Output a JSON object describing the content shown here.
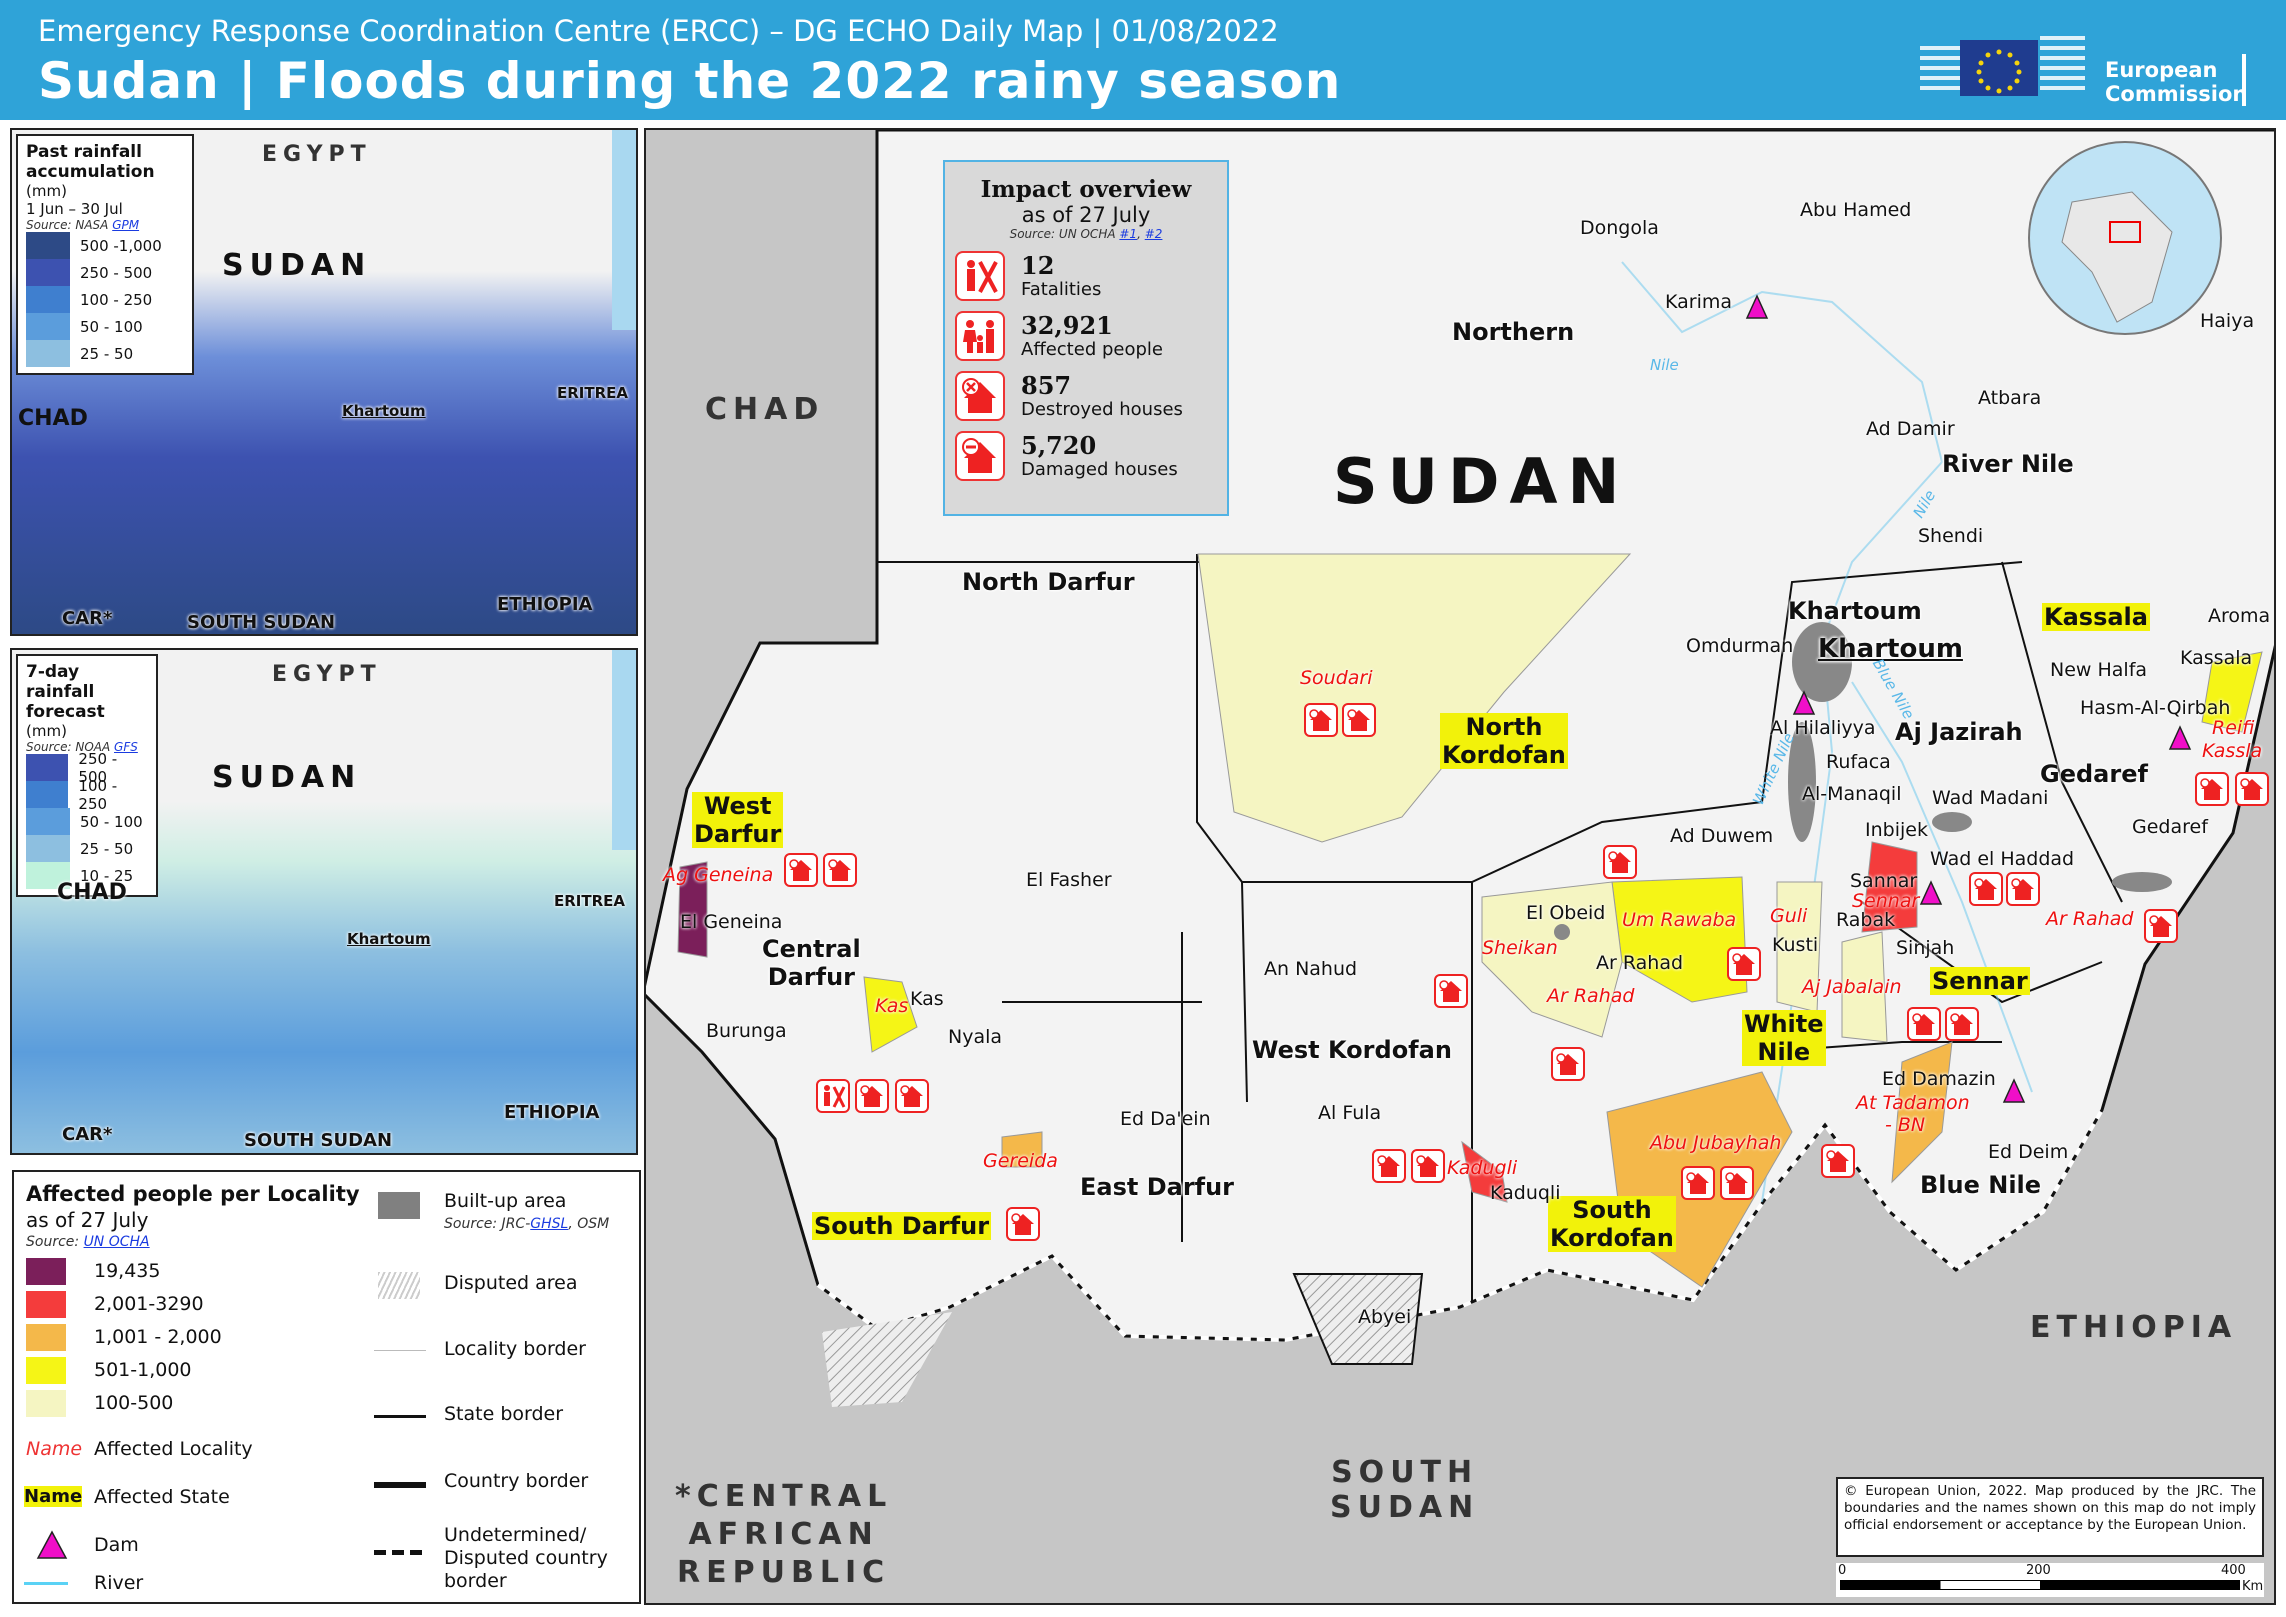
{
  "header": {
    "subtitle": "Emergency Response Coordination Centre (ERCC) – DG ECHO Daily Map | 01/08/2022",
    "title": "Sudan | Floods during the 2022 rainy season",
    "logo_text_1": "European",
    "logo_text_2": "Commission"
  },
  "inset_past": {
    "title_1": "Past rainfall",
    "title_2": "accumulation",
    "unit": "(mm)",
    "period": "1 Jun – 30 Jul",
    "source": "Source: NASA",
    "source_link": "GPM",
    "classes": [
      {
        "label": "500 -1,000",
        "color": "#2d4a86"
      },
      {
        "label": "250 - 500",
        "color": "#3d52b0"
      },
      {
        "label": "100 - 250",
        "color": "#3f7fcf"
      },
      {
        "label": "50 - 100",
        "color": "#5b9ddc"
      },
      {
        "label": "25 - 50",
        "color": "#8dbfe0"
      }
    ],
    "labels": {
      "egypt": "EGYPT",
      "sudan": "SUDAN",
      "chad": "CHAD",
      "eritrea": "ERITREA",
      "khartoum": "Khartoum",
      "car": "CAR*",
      "south_sudan": "SOUTH SUDAN",
      "ethiopia": "ETHIOPIA"
    }
  },
  "inset_forecast": {
    "title_1": "7-day rainfall",
    "title_2": "forecast",
    "unit": "(mm)",
    "source": "Source: NOAA",
    "source_link": "GFS",
    "classes": [
      {
        "label": "250 - 500",
        "color": "#3d52b0"
      },
      {
        "label": "100 - 250",
        "color": "#3f7fcf"
      },
      {
        "label": "50 - 100",
        "color": "#5b9ddc"
      },
      {
        "label": "25 - 50",
        "color": "#8dbfe0"
      },
      {
        "label": "10 - 25",
        "color": "#bff2dc"
      }
    ],
    "labels": {
      "egypt": "EGYPT",
      "sudan": "SUDAN",
      "chad": "CHAD",
      "eritrea": "ERITREA",
      "khartoum": "Khartoum",
      "car": "CAR*",
      "south_sudan": "SOUTH SUDAN",
      "ethiopia": "ETHIOPIA"
    }
  },
  "impact": {
    "title": "Impact overview",
    "date": "as of 27 July",
    "source": "Source: UN OCHA",
    "link1": "#1",
    "link2": "#2",
    "items": [
      {
        "value": "12",
        "label": "Fatalities",
        "icon": "fatalities-icon"
      },
      {
        "value": "32,921",
        "label": "Affected people",
        "icon": "affected-people-icon"
      },
      {
        "value": "857",
        "label": "Destroyed houses",
        "icon": "destroyed-house-icon"
      },
      {
        "value": "5,720",
        "label": "Damaged  houses",
        "icon": "damaged-house-icon"
      }
    ]
  },
  "legend": {
    "title": "Affected people per Locality",
    "date": "as of 27 July",
    "source": "Source:",
    "source_link": "UN OCHA",
    "classes": [
      {
        "label": "19,435",
        "color": "#7b1f5a"
      },
      {
        "label": "2,001-3290",
        "color": "#f43c3c"
      },
      {
        "label": "1,001  -  2,000",
        "color": "#f4b84a"
      },
      {
        "label": "501-1,000",
        "color": "#f5f516"
      },
      {
        "label": "100-500",
        "color": "#f5f5c2"
      }
    ],
    "name_sample": "Name",
    "affected_locality": "Affected Locality",
    "affected_state": "Affected State",
    "dam": "Dam",
    "river": "River",
    "builtup": "Built-up  area",
    "builtup_source": "Source: JRC-",
    "builtup_link": "GHSL",
    "builtup_source2": ", OSM",
    "disputed": "Disputed  area",
    "locality_border": "Locality border",
    "state_border": "State border",
    "country_border": "Country  border",
    "undetermined_1": "Undetermined/",
    "undetermined_2": "Disputed  country",
    "undetermined_3": "border",
    "colors": {
      "dam": "#f00fc8",
      "river": "#5ad2f5"
    }
  },
  "map": {
    "countries": {
      "chad": "CHAD",
      "sudan": "SUDAN",
      "ethiopia": "ETHIOPIA",
      "south_sudan_1": "SOUTH",
      "south_sudan_2": "SUDAN",
      "car_1": "*CENTRAL",
      "car_2": "AFRICAN",
      "car_3": "REPUBLIC"
    },
    "affected_states": [
      "West",
      "Darfur",
      "Central",
      "Darfur",
      "North",
      "Kordofan",
      "South Darfur",
      "South",
      "Kordofan",
      "White",
      "Nile",
      "Sennar",
      "Kassala",
      "Khartoum"
    ],
    "states": [
      "Northern",
      "River Nile",
      "North Darfur",
      "West Kordofan",
      "East Darfur",
      "Blue Nile",
      "Gedaref",
      "Aj Jazirah",
      "Khartoum"
    ],
    "localities": [
      "Soudari",
      "Ag Geneina",
      "Kas",
      "Gereida",
      "Kadugli",
      "Abu Jubayhah",
      "Um Rawaba",
      "Sheikan",
      "Ar Rahad",
      "Guli",
      "Aj Jabalain",
      "At Tadamon",
      "- BN",
      "Sennar",
      "Ar Rahad",
      "Reifi",
      "Kassla"
    ],
    "towns": [
      "Dongola",
      "Abu Hamed",
      "Karima",
      "Atbara",
      "Ad Damir",
      "Shendi",
      "Haiya",
      "Aroma",
      "Kassala",
      "New Halfa",
      "Hasm-Al-Qirbah",
      "Omdurman",
      "Al Hilaliyya",
      "Rufaca",
      "Al-Manaqil",
      "Wad Madani",
      "Gedaref",
      "Inbijek",
      "Ad Duwem",
      "Wad el Haddad",
      "Rabak",
      "Kusti",
      "Sinjah",
      "El Obeid",
      "Ar Rahad",
      "An Nahud",
      "El Fasher",
      "El Geneina",
      "Kas",
      "Nyala",
      "Burunga",
      "Ed Da'ein",
      "Al Fula",
      "Kaduqli",
      "Ed Damazin",
      "Ed Deim",
      "Abyei",
      "Sannar"
    ],
    "rivers": [
      "Nile",
      "Nile",
      "White Nile",
      "Blue Nile"
    ],
    "copyright": "© European Union, 2022. Map produced by the JRC. The boundaries and the names shown on this map do not imply official endorsement or acceptance by the European Union.",
    "scale": {
      "t0": "0",
      "t1": "200",
      "t2": "400",
      "unit": "Km"
    }
  }
}
